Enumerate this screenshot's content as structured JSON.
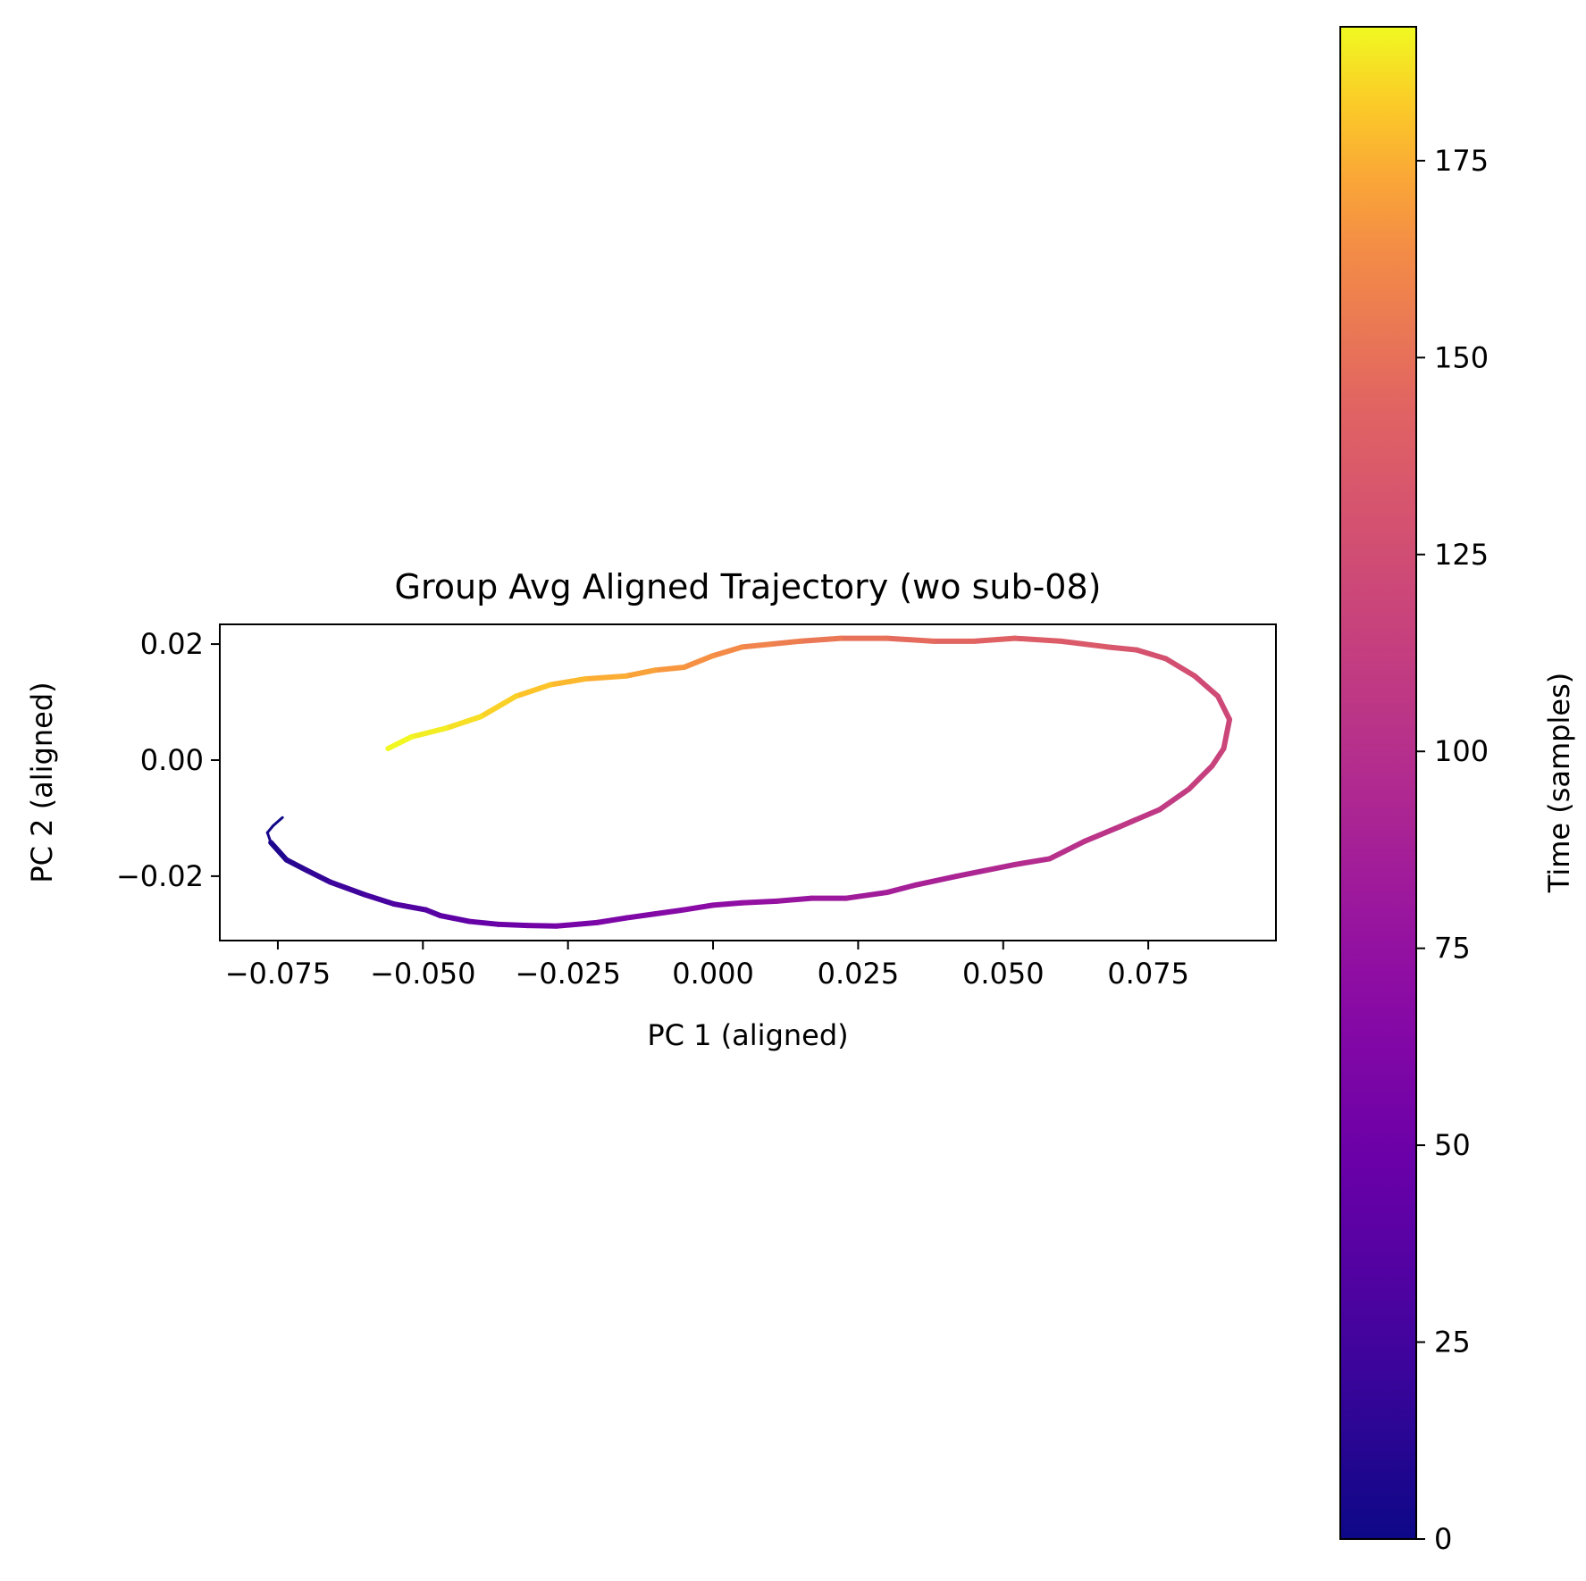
{
  "chart_data": {
    "type": "line",
    "title": "Group Avg Aligned Trajectory (wo sub-08)",
    "xlabel": "PC 1 (aligned)",
    "ylabel": "PC 2 (aligned)",
    "xlim": [
      -0.085,
      0.097
    ],
    "ylim": [
      -0.0311,
      0.0234
    ],
    "x_ticks": [
      -0.075,
      -0.05,
      -0.025,
      0.0,
      0.025,
      0.05,
      0.075
    ],
    "x_tick_labels": [
      "−0.075",
      "−0.050",
      "−0.025",
      "0.000",
      "0.025",
      "0.050",
      "0.075"
    ],
    "y_ticks": [
      0.02,
      0.0,
      -0.02
    ],
    "y_tick_labels": [
      "0.02",
      "0.00",
      "−0.02"
    ],
    "colorbar": {
      "label": "Time (samples)",
      "colormap": "plasma",
      "range": [
        0,
        192
      ],
      "ticks": [
        0,
        25,
        50,
        75,
        100,
        125,
        150,
        175
      ],
      "tick_labels": [
        "0",
        "25",
        "50",
        "75",
        "100",
        "125",
        "150",
        "175"
      ]
    },
    "series": [
      {
        "color_by": "time",
        "points": [
          {
            "t": 0,
            "x": -0.0742,
            "y": -0.0099
          },
          {
            "t": 2,
            "x": -0.0758,
            "y": -0.0113
          },
          {
            "t": 4,
            "x": -0.0768,
            "y": -0.0125
          },
          {
            "t": 6,
            "x": -0.0762,
            "y": -0.0142
          },
          {
            "t": 10,
            "x": -0.0735,
            "y": -0.0172
          },
          {
            "t": 15,
            "x": -0.07,
            "y": -0.019
          },
          {
            "t": 20,
            "x": -0.066,
            "y": -0.021
          },
          {
            "t": 25,
            "x": -0.06,
            "y": -0.0232
          },
          {
            "t": 30,
            "x": -0.055,
            "y": -0.0248
          },
          {
            "t": 35,
            "x": -0.0495,
            "y": -0.0258
          },
          {
            "t": 39,
            "x": -0.047,
            "y": -0.0268
          },
          {
            "t": 43,
            "x": -0.042,
            "y": -0.0278
          },
          {
            "t": 47,
            "x": -0.037,
            "y": -0.0283
          },
          {
            "t": 51,
            "x": -0.032,
            "y": -0.0285
          },
          {
            "t": 55,
            "x": -0.027,
            "y": -0.0286
          },
          {
            "t": 58,
            "x": -0.02,
            "y": -0.028
          },
          {
            "t": 61,
            "x": -0.015,
            "y": -0.0272
          },
          {
            "t": 64,
            "x": -0.01,
            "y": -0.0265
          },
          {
            "t": 67,
            "x": -0.005,
            "y": -0.0258
          },
          {
            "t": 70,
            "x": 0.0,
            "y": -0.025
          },
          {
            "t": 73,
            "x": 0.005,
            "y": -0.0246
          },
          {
            "t": 76,
            "x": 0.011,
            "y": -0.0243
          },
          {
            "t": 79,
            "x": 0.017,
            "y": -0.0238
          },
          {
            "t": 82,
            "x": 0.023,
            "y": -0.0238
          },
          {
            "t": 85,
            "x": 0.03,
            "y": -0.0228
          },
          {
            "t": 88,
            "x": 0.035,
            "y": -0.0215
          },
          {
            "t": 91,
            "x": 0.042,
            "y": -0.02
          },
          {
            "t": 94,
            "x": 0.047,
            "y": -0.019
          },
          {
            "t": 97,
            "x": 0.052,
            "y": -0.018
          },
          {
            "t": 100,
            "x": 0.058,
            "y": -0.017
          },
          {
            "t": 103,
            "x": 0.064,
            "y": -0.014
          },
          {
            "t": 106,
            "x": 0.07,
            "y": -0.0115
          },
          {
            "t": 109,
            "x": 0.077,
            "y": -0.0085
          },
          {
            "t": 112,
            "x": 0.082,
            "y": -0.005
          },
          {
            "t": 115,
            "x": 0.086,
            "y": -0.001
          },
          {
            "t": 118,
            "x": 0.088,
            "y": 0.002
          },
          {
            "t": 120,
            "x": 0.089,
            "y": 0.007
          },
          {
            "t": 122,
            "x": 0.087,
            "y": 0.011
          },
          {
            "t": 125,
            "x": 0.083,
            "y": 0.0145
          },
          {
            "t": 128,
            "x": 0.078,
            "y": 0.0175
          },
          {
            "t": 131,
            "x": 0.073,
            "y": 0.019
          },
          {
            "t": 134,
            "x": 0.068,
            "y": 0.0195
          },
          {
            "t": 137,
            "x": 0.06,
            "y": 0.0205
          },
          {
            "t": 140,
            "x": 0.052,
            "y": 0.021
          },
          {
            "t": 143,
            "x": 0.045,
            "y": 0.0205
          },
          {
            "t": 146,
            "x": 0.038,
            "y": 0.0205
          },
          {
            "t": 149,
            "x": 0.03,
            "y": 0.021
          },
          {
            "t": 152,
            "x": 0.022,
            "y": 0.021
          },
          {
            "t": 155,
            "x": 0.015,
            "y": 0.0205
          },
          {
            "t": 158,
            "x": 0.01,
            "y": 0.02
          },
          {
            "t": 161,
            "x": 0.005,
            "y": 0.0195
          },
          {
            "t": 164,
            "x": 0.0,
            "y": 0.018
          },
          {
            "t": 167,
            "x": -0.005,
            "y": 0.016
          },
          {
            "t": 170,
            "x": -0.01,
            "y": 0.0155
          },
          {
            "t": 173,
            "x": -0.015,
            "y": 0.0145
          },
          {
            "t": 176,
            "x": -0.022,
            "y": 0.014
          },
          {
            "t": 179,
            "x": -0.028,
            "y": 0.013
          },
          {
            "t": 182,
            "x": -0.034,
            "y": 0.011
          },
          {
            "t": 185,
            "x": -0.04,
            "y": 0.0075
          },
          {
            "t": 188,
            "x": -0.046,
            "y": 0.0055
          },
          {
            "t": 191,
            "x": -0.052,
            "y": 0.004
          },
          {
            "t": 192,
            "x": -0.056,
            "y": 0.002
          }
        ]
      }
    ]
  }
}
